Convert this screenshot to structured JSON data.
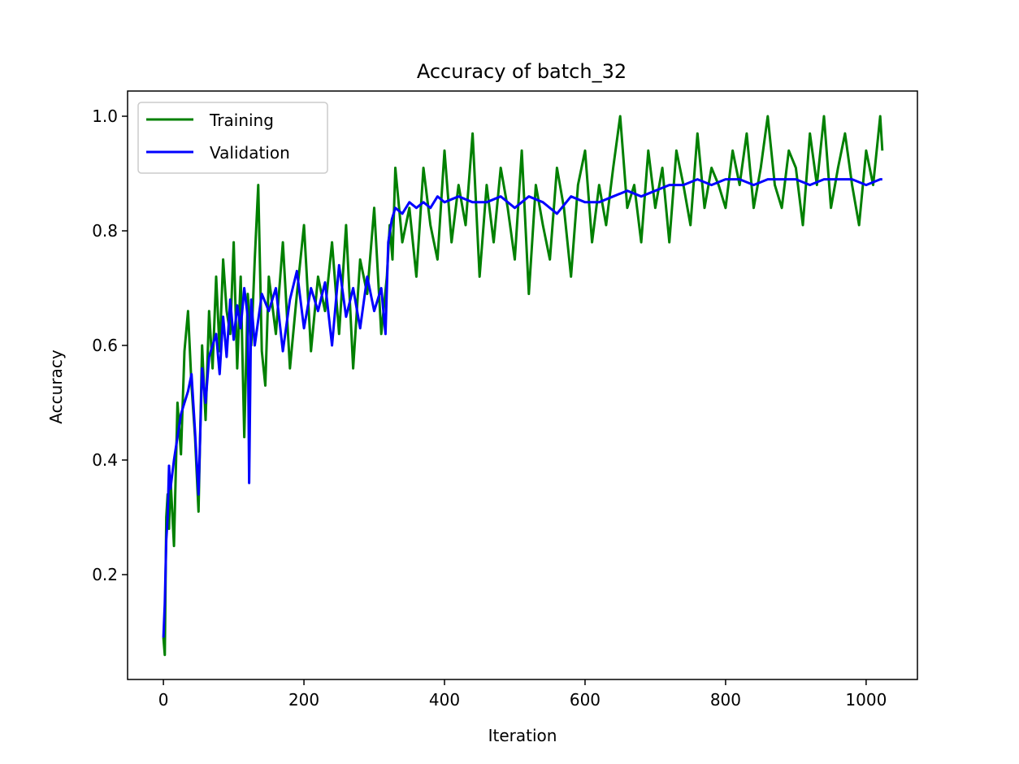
{
  "chart_data": {
    "type": "line",
    "title": "Accuracy of batch_32",
    "xlabel": "Iteration",
    "ylabel": "Accuracy",
    "xlim": [
      -51,
      1073
    ],
    "ylim": [
      0.017,
      1.044
    ],
    "xticks": [
      0,
      200,
      400,
      600,
      800,
      1000
    ],
    "yticks": [
      0.2,
      0.4,
      0.6,
      0.8,
      1.0
    ],
    "xtick_labels": [
      "0",
      "200",
      "400",
      "600",
      "800",
      "1000"
    ],
    "ytick_labels": [
      "0.2",
      "0.4",
      "0.6",
      "0.8",
      "1.0"
    ],
    "grid": false,
    "legend_position": "upper-left",
    "series": [
      {
        "name": "Training",
        "color": "#008000",
        "x": [
          0,
          2,
          4,
          6,
          8,
          10,
          15,
          20,
          25,
          30,
          35,
          40,
          45,
          50,
          55,
          60,
          65,
          70,
          75,
          80,
          85,
          90,
          95,
          100,
          105,
          110,
          115,
          120,
          125,
          130,
          135,
          140,
          145,
          150,
          160,
          170,
          180,
          190,
          200,
          210,
          220,
          230,
          240,
          250,
          260,
          270,
          280,
          290,
          300,
          310,
          318,
          322,
          326,
          330,
          340,
          350,
          360,
          370,
          380,
          390,
          400,
          410,
          420,
          430,
          440,
          450,
          460,
          470,
          480,
          490,
          500,
          510,
          520,
          530,
          540,
          550,
          560,
          570,
          580,
          590,
          600,
          610,
          620,
          630,
          640,
          650,
          660,
          670,
          680,
          690,
          700,
          710,
          720,
          730,
          740,
          750,
          760,
          770,
          780,
          790,
          800,
          810,
          820,
          830,
          840,
          850,
          860,
          870,
          880,
          890,
          900,
          910,
          920,
          930,
          940,
          950,
          960,
          970,
          980,
          990,
          1000,
          1010,
          1020,
          1023
        ],
        "y": [
          0.09,
          0.06,
          0.3,
          0.34,
          0.28,
          0.37,
          0.25,
          0.5,
          0.41,
          0.59,
          0.66,
          0.53,
          0.44,
          0.31,
          0.6,
          0.47,
          0.66,
          0.56,
          0.72,
          0.59,
          0.75,
          0.66,
          0.62,
          0.78,
          0.56,
          0.72,
          0.44,
          0.69,
          0.6,
          0.75,
          0.88,
          0.59,
          0.53,
          0.72,
          0.62,
          0.78,
          0.56,
          0.69,
          0.81,
          0.59,
          0.72,
          0.66,
          0.78,
          0.62,
          0.81,
          0.56,
          0.75,
          0.69,
          0.84,
          0.62,
          0.72,
          0.81,
          0.75,
          0.91,
          0.78,
          0.84,
          0.72,
          0.91,
          0.81,
          0.75,
          0.94,
          0.78,
          0.88,
          0.81,
          0.97,
          0.72,
          0.88,
          0.78,
          0.91,
          0.84,
          0.75,
          0.94,
          0.69,
          0.88,
          0.81,
          0.75,
          0.91,
          0.84,
          0.72,
          0.88,
          0.94,
          0.78,
          0.88,
          0.81,
          0.91,
          1.0,
          0.84,
          0.88,
          0.78,
          0.94,
          0.84,
          0.91,
          0.78,
          0.94,
          0.88,
          0.81,
          0.97,
          0.84,
          0.91,
          0.88,
          0.84,
          0.94,
          0.88,
          0.97,
          0.84,
          0.91,
          1.0,
          0.88,
          0.84,
          0.94,
          0.91,
          0.81,
          0.97,
          0.88,
          1.0,
          0.84,
          0.91,
          0.97,
          0.88,
          0.81,
          0.94,
          0.88,
          1.0,
          0.94
        ]
      },
      {
        "name": "Validation",
        "color": "#0000ff",
        "x": [
          0,
          2,
          4,
          6,
          8,
          10,
          15,
          20,
          25,
          30,
          35,
          40,
          45,
          50,
          55,
          60,
          65,
          70,
          75,
          80,
          85,
          90,
          95,
          100,
          105,
          110,
          115,
          120,
          122,
          125,
          130,
          140,
          150,
          160,
          170,
          180,
          190,
          200,
          210,
          220,
          230,
          240,
          250,
          260,
          270,
          280,
          290,
          300,
          310,
          316,
          320,
          325,
          330,
          340,
          350,
          360,
          370,
          380,
          390,
          400,
          420,
          440,
          460,
          480,
          500,
          520,
          540,
          560,
          580,
          600,
          620,
          640,
          660,
          680,
          700,
          720,
          740,
          760,
          780,
          800,
          820,
          840,
          860,
          880,
          900,
          920,
          940,
          960,
          980,
          1000,
          1020,
          1023
        ],
        "y": [
          0.09,
          0.15,
          0.26,
          0.3,
          0.39,
          0.35,
          0.4,
          0.44,
          0.48,
          0.5,
          0.52,
          0.55,
          0.45,
          0.34,
          0.56,
          0.5,
          0.58,
          0.6,
          0.62,
          0.55,
          0.65,
          0.58,
          0.68,
          0.61,
          0.67,
          0.63,
          0.7,
          0.65,
          0.36,
          0.68,
          0.6,
          0.69,
          0.66,
          0.7,
          0.59,
          0.68,
          0.73,
          0.63,
          0.7,
          0.66,
          0.71,
          0.6,
          0.74,
          0.65,
          0.7,
          0.63,
          0.72,
          0.66,
          0.7,
          0.62,
          0.78,
          0.82,
          0.84,
          0.83,
          0.85,
          0.84,
          0.85,
          0.84,
          0.86,
          0.85,
          0.86,
          0.85,
          0.85,
          0.86,
          0.84,
          0.86,
          0.85,
          0.83,
          0.86,
          0.85,
          0.85,
          0.86,
          0.87,
          0.86,
          0.87,
          0.88,
          0.88,
          0.89,
          0.88,
          0.89,
          0.89,
          0.88,
          0.89,
          0.89,
          0.89,
          0.88,
          0.89,
          0.89,
          0.89,
          0.88,
          0.89,
          0.89
        ]
      }
    ]
  }
}
